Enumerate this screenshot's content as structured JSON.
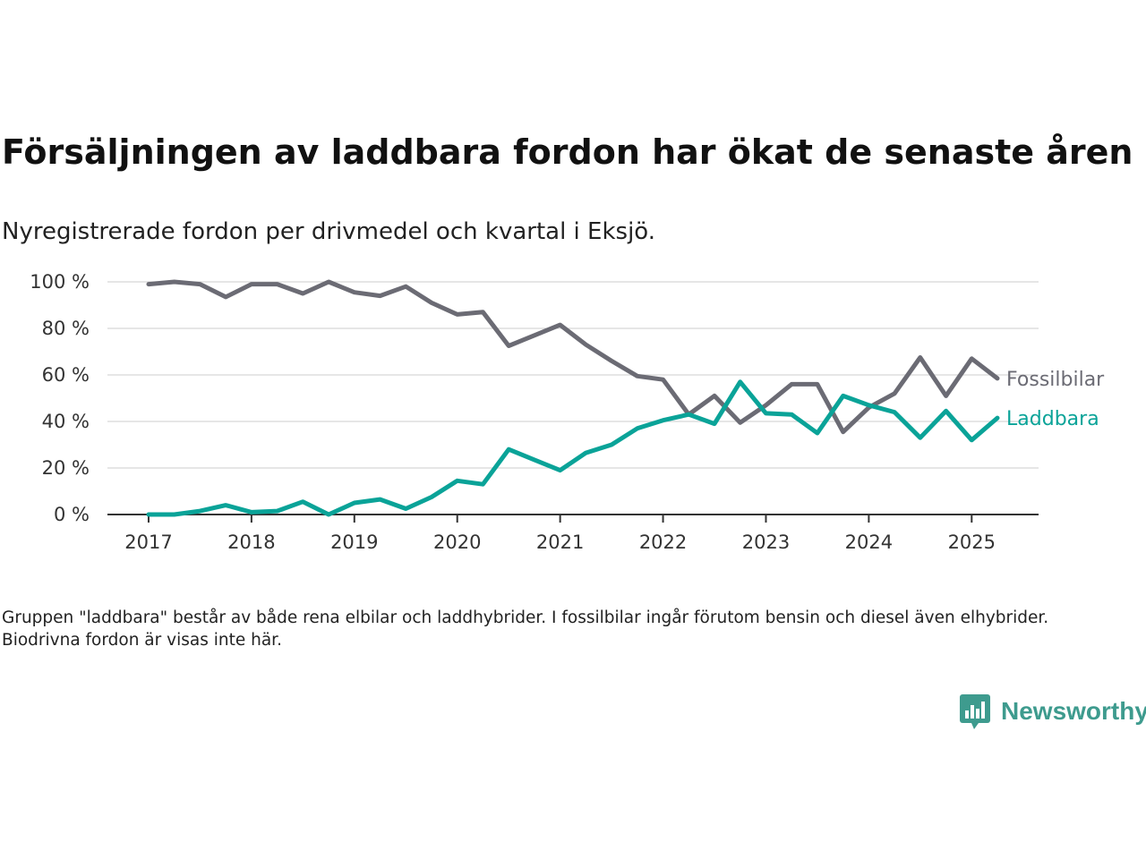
{
  "title": "Försäljningen av laddbara fordon har ökat de senaste åren",
  "subtitle": "Nyregistrerade fordon per drivmedel och kvartal i Eksjö.",
  "footnote": "Gruppen \"laddbara\" består av både rena elbilar och laddhybrider. I fossilbilar ingår förutom bensin och diesel även elhybrider. Biodrivna fordon är visas inte här.",
  "brand": {
    "name": "Newsworthy",
    "icon": "newsworthy-logo-icon",
    "color": "#3e9b8e"
  },
  "chart_data": {
    "type": "line",
    "xlabel": "",
    "ylabel": "",
    "x_unit": "quarter",
    "xlim": [
      2016.6,
      2025.65
    ],
    "ylim": [
      0,
      100
    ],
    "y_ticks": [
      0,
      20,
      40,
      60,
      80,
      100
    ],
    "y_tick_labels": [
      "0 %",
      "20 %",
      "40 %",
      "60 %",
      "80 %",
      "100 %"
    ],
    "x_ticks": [
      2017,
      2018,
      2019,
      2020,
      2021,
      2022,
      2023,
      2024,
      2025
    ],
    "x_tick_labels": [
      "2017",
      "2018",
      "2019",
      "2020",
      "2021",
      "2022",
      "2023",
      "2024",
      "2025"
    ],
    "grid": true,
    "legend": "inline-right",
    "x": [
      "2017 Q1",
      "2017 Q2",
      "2017 Q3",
      "2017 Q4",
      "2018 Q1",
      "2018 Q2",
      "2018 Q3",
      "2018 Q4",
      "2019 Q1",
      "2019 Q2",
      "2019 Q3",
      "2019 Q4",
      "2020 Q1",
      "2020 Q2",
      "2020 Q3",
      "2020 Q4",
      "2021 Q1",
      "2021 Q2",
      "2021 Q3",
      "2021 Q4",
      "2022 Q1",
      "2022 Q2",
      "2022 Q3",
      "2022 Q4",
      "2023 Q1",
      "2023 Q2",
      "2023 Q3",
      "2023 Q4",
      "2024 Q1",
      "2024 Q2",
      "2024 Q3",
      "2024 Q4",
      "2025 Q1",
      "2025 Q2"
    ],
    "series": [
      {
        "name": "Fossilbilar",
        "color": "#6b6b74",
        "values": [
          99,
          100,
          99,
          93.5,
          99,
          99,
          95,
          100,
          95.5,
          94,
          98,
          91,
          86,
          87,
          72.5,
          77,
          81.5,
          73,
          66,
          59.5,
          58,
          43,
          51,
          39.5,
          47,
          56,
          56,
          35.5,
          46,
          52,
          67.5,
          51,
          67,
          58.5
        ]
      },
      {
        "name": "Laddbara",
        "color": "#0aa398",
        "values": [
          0,
          0,
          1.5,
          4,
          1,
          1.5,
          5.5,
          0,
          5,
          6.5,
          2.5,
          7.5,
          14.5,
          13,
          28,
          23.5,
          19,
          26.5,
          30,
          37,
          40.5,
          43,
          39,
          57,
          43.5,
          43,
          35,
          51,
          47,
          44,
          33,
          44.5,
          32,
          41.5
        ]
      }
    ]
  }
}
